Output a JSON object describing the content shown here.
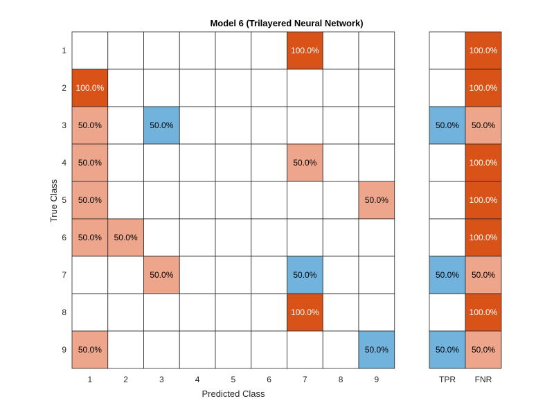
{
  "chart_data": {
    "type": "heatmap",
    "title": "Model 6 (Trilayered Neural Network)",
    "xlabel": "Predicted Class",
    "ylabel": "True Class",
    "x_categories": [
      "1",
      "2",
      "3",
      "4",
      "5",
      "6",
      "7",
      "8",
      "9"
    ],
    "y_categories": [
      "1",
      "2",
      "3",
      "4",
      "5",
      "6",
      "7",
      "8",
      "9"
    ],
    "cells": [
      [
        "",
        "",
        "",
        "",
        "",
        "",
        "100.0%",
        "",
        ""
      ],
      [
        "100.0%",
        "",
        "",
        "",
        "",
        "",
        "",
        "",
        ""
      ],
      [
        "50.0%",
        "",
        "50.0%",
        "",
        "",
        "",
        "",
        "",
        ""
      ],
      [
        "50.0%",
        "",
        "",
        "",
        "",
        "",
        "50.0%",
        "",
        ""
      ],
      [
        "50.0%",
        "",
        "",
        "",
        "",
        "",
        "",
        "",
        "50.0%"
      ],
      [
        "50.0%",
        "50.0%",
        "",
        "",
        "",
        "",
        "",
        "",
        ""
      ],
      [
        "",
        "",
        "50.0%",
        "",
        "",
        "",
        "50.0%",
        "",
        ""
      ],
      [
        "",
        "",
        "",
        "",
        "",
        "",
        "100.0%",
        "",
        ""
      ],
      [
        "50.0%",
        "",
        "",
        "",
        "",
        "",
        "",
        "",
        "50.0%"
      ]
    ],
    "side_columns": [
      "TPR",
      "FNR"
    ],
    "side_cells": [
      [
        "",
        "100.0%"
      ],
      [
        "",
        "100.0%"
      ],
      [
        "50.0%",
        "50.0%"
      ],
      [
        "",
        "100.0%"
      ],
      [
        "",
        "100.0%"
      ],
      [
        "",
        "100.0%"
      ],
      [
        "50.0%",
        "50.0%"
      ],
      [
        "",
        "100.0%"
      ],
      [
        "50.0%",
        "50.0%"
      ]
    ],
    "colors": {
      "correct": "#72b3de",
      "error_strong": "#d95319",
      "error_light": "#eda68b",
      "text_dark": "#000000",
      "text_light": "#ffffff",
      "grid": "#262626"
    }
  }
}
